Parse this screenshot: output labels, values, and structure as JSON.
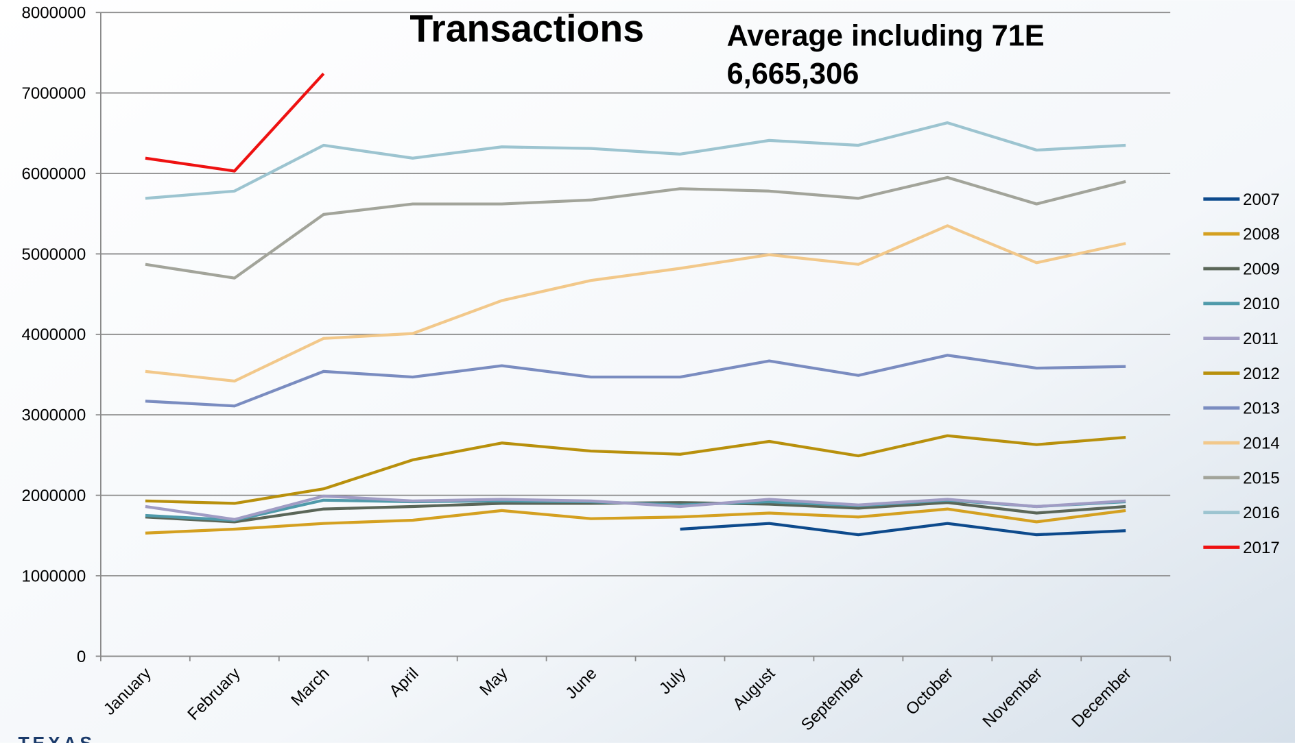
{
  "chart_data": {
    "type": "line",
    "title": "Transactions",
    "annotations": [
      "Average including 71E",
      "6,665,306"
    ],
    "logo": "TEXAS",
    "categories": [
      "January",
      "February",
      "March",
      "April",
      "May",
      "June",
      "July",
      "August",
      "September",
      "October",
      "November",
      "December"
    ],
    "ylim": [
      0,
      8000000
    ],
    "yticks": [
      0,
      1000000,
      2000000,
      3000000,
      4000000,
      5000000,
      6000000,
      7000000,
      8000000
    ],
    "grid": true,
    "legend": "right",
    "series": [
      {
        "name": "2007",
        "color": "#0d4a8c",
        "values": [
          null,
          null,
          null,
          null,
          null,
          null,
          1580000,
          1650000,
          1510000,
          1650000,
          1510000,
          1560000
        ]
      },
      {
        "name": "2008",
        "color": "#d4a020",
        "values": [
          1530000,
          1580000,
          1650000,
          1690000,
          1810000,
          1710000,
          1730000,
          1780000,
          1730000,
          1830000,
          1670000,
          1810000
        ]
      },
      {
        "name": "2009",
        "color": "#5a6658",
        "values": [
          1730000,
          1670000,
          1830000,
          1860000,
          1900000,
          1900000,
          1910000,
          1890000,
          1840000,
          1910000,
          1780000,
          1860000
        ]
      },
      {
        "name": "2010",
        "color": "#4f9aaa",
        "values": [
          1750000,
          1690000,
          1940000,
          1920000,
          1930000,
          1920000,
          1880000,
          1920000,
          1870000,
          1940000,
          1860000,
          1920000
        ]
      },
      {
        "name": "2011",
        "color": "#a09cc4",
        "values": [
          1860000,
          1700000,
          1990000,
          1930000,
          1950000,
          1930000,
          1860000,
          1950000,
          1880000,
          1950000,
          1860000,
          1930000
        ]
      },
      {
        "name": "2012",
        "color": "#b8900c",
        "values": [
          1930000,
          1900000,
          2080000,
          2440000,
          2650000,
          2550000,
          2510000,
          2670000,
          2490000,
          2740000,
          2630000,
          2720000
        ]
      },
      {
        "name": "2013",
        "color": "#7a8cc0",
        "values": [
          3170000,
          3110000,
          3540000,
          3470000,
          3610000,
          3470000,
          3470000,
          3670000,
          3490000,
          3740000,
          3580000,
          3600000
        ]
      },
      {
        "name": "2014",
        "color": "#f2c88a",
        "values": [
          3540000,
          3420000,
          3950000,
          4010000,
          4420000,
          4670000,
          4820000,
          4990000,
          4870000,
          5350000,
          4890000,
          5130000
        ]
      },
      {
        "name": "2015",
        "color": "#a2a49a",
        "values": [
          4870000,
          4700000,
          5490000,
          5620000,
          5620000,
          5670000,
          5810000,
          5780000,
          5690000,
          5950000,
          5620000,
          5900000
        ]
      },
      {
        "name": "2016",
        "color": "#9cc4d0",
        "values": [
          5690000,
          5780000,
          6350000,
          6190000,
          6330000,
          6310000,
          6240000,
          6410000,
          6350000,
          6630000,
          6290000,
          6350000
        ]
      },
      {
        "name": "2017",
        "color": "#ee1111",
        "values": [
          6190000,
          6030000,
          7240000,
          null,
          null,
          null,
          null,
          null,
          null,
          null,
          null,
          null
        ]
      }
    ]
  }
}
